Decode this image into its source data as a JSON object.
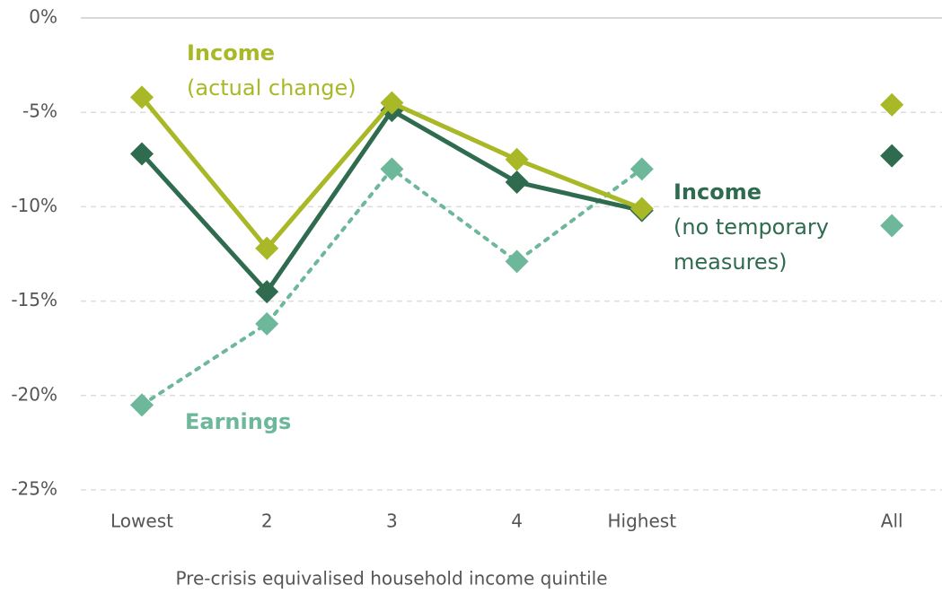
{
  "chart_data": {
    "type": "line",
    "categories": [
      "Lowest",
      "2",
      "3",
      "4",
      "Highest",
      null,
      "All"
    ],
    "series": [
      {
        "name": "Income",
        "note": [
          "(actual change)"
        ],
        "color": "#a9b826",
        "dash": "solid",
        "values": [
          -4.2,
          -12.2,
          -4.5,
          -7.5,
          -10.1,
          null,
          -4.6
        ]
      },
      {
        "name": "Income",
        "note": [
          "(no temporary",
          "measures)"
        ],
        "color": "#2e6b4f",
        "dash": "solid",
        "values": [
          -7.2,
          -14.5,
          -4.9,
          -8.7,
          -10.2,
          null,
          -7.3
        ]
      },
      {
        "name": "Earnings",
        "note": [],
        "color": "#6db89a",
        "dash": "dotted",
        "values": [
          -20.5,
          -16.2,
          -8.0,
          -12.9,
          -8.0,
          null,
          -11.0
        ]
      }
    ],
    "x_label": "Pre-crisis equivalised household income quintile",
    "ylim": [
      -25,
      0
    ],
    "yticks": [
      {
        "value": 0,
        "label": "0%"
      },
      {
        "value": -5,
        "label": "-5%"
      },
      {
        "value": -10,
        "label": "-10%"
      },
      {
        "value": -15,
        "label": "-15%"
      },
      {
        "value": -20,
        "label": "-20%"
      },
      {
        "value": -25,
        "label": "-25%"
      }
    ],
    "grid": true
  }
}
